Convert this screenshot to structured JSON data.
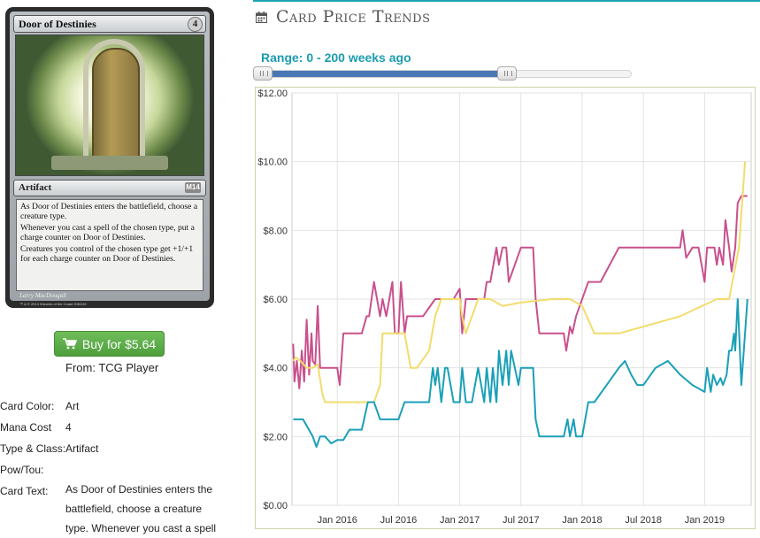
{
  "card": {
    "name": "Door of Destinies",
    "cost": "4",
    "type_line": "Artifact",
    "set_symbol": "M14",
    "rules_text": [
      "As Door of Destinies enters the battlefield, choose a creature type.",
      "Whenever you cast a spell of the chosen type, put a charge counter on Door of Destinies.",
      "Creatures you control of the chosen type get +1/+1 for each charge counter on Door of Destinies."
    ],
    "artist": "Larry MacDougall",
    "copyright": "™ & © 2013 Wizards of the Coast 208/249"
  },
  "buy": {
    "label": "Buy for $5.64",
    "from": "From: TCG Player",
    "icon": "cart-icon",
    "color": "#5cb048"
  },
  "details": {
    "rows": [
      {
        "label": "Card Color:",
        "value": "Art"
      },
      {
        "label": "Mana Cost",
        "value": "4"
      },
      {
        "label": "Type & Class:",
        "value": "Artifact"
      },
      {
        "label": "Pow/Tou:",
        "value": ""
      },
      {
        "label": "Card Text:",
        "value": ""
      }
    ],
    "card_text_lines": [
      "As Door of Destinies enters the",
      "battlefield, choose a creature",
      "type. Whenever you cast a spell"
    ]
  },
  "panel": {
    "title": "Card Price Trends",
    "icon": "calendar-icon",
    "accent": "#1ea3b5"
  },
  "range": {
    "label": "Range: 0 - 200 weeks ago",
    "min": 0,
    "max": 200,
    "start_fraction": 0.0,
    "end_fraction": 0.68
  },
  "chart_data": {
    "type": "line",
    "title": "",
    "xlabel": "",
    "ylabel": "",
    "ylim": [
      0,
      12
    ],
    "xlim": [
      2015.63,
      2019.38
    ],
    "y_ticks": [
      "$0.00",
      "$2.00",
      "$4.00",
      "$6.00",
      "$8.00",
      "$10.00",
      "$12.00"
    ],
    "y_tick_values": [
      0,
      2,
      4,
      6,
      8,
      10,
      12
    ],
    "x_ticks": [
      "Jan 2016",
      "Jul 2016",
      "Jan 2017",
      "Jul 2017",
      "Jan 2018",
      "Jul 2018",
      "Jan 2019"
    ],
    "x_tick_values": [
      2016.0,
      2016.5,
      2017.0,
      2017.5,
      2018.0,
      2018.5,
      2019.0
    ],
    "grid": true,
    "series": [
      {
        "color": "#c9508c",
        "x": [
          2015.64,
          2015.65,
          2015.67,
          2015.69,
          2015.71,
          2015.73,
          2015.75,
          2015.77,
          2015.79,
          2015.8,
          2015.82,
          2015.84,
          2015.86,
          2015.9,
          2016.0,
          2016.02,
          2016.05,
          2016.2,
          2016.24,
          2016.26,
          2016.3,
          2016.35,
          2016.37,
          2016.4,
          2016.45,
          2016.47,
          2016.5,
          2016.52,
          2016.55,
          2016.57,
          2016.6,
          2016.65,
          2016.7,
          2016.8,
          2016.9,
          2016.95,
          2017.0,
          2017.02,
          2017.05,
          2017.08,
          2017.12,
          2017.15,
          2017.2,
          2017.22,
          2017.25,
          2017.3,
          2017.32,
          2017.35,
          2017.38,
          2017.4,
          2017.45,
          2017.5,
          2017.55,
          2017.6,
          2017.62,
          2017.65,
          2017.7,
          2017.78,
          2017.85,
          2017.87,
          2017.9,
          2017.92,
          2017.95,
          2018.05,
          2018.1,
          2018.15,
          2018.3,
          2018.4,
          2018.45,
          2018.5,
          2018.55,
          2018.6,
          2018.7,
          2018.8,
          2018.82,
          2018.85,
          2018.9,
          2018.95,
          2019.0,
          2019.02,
          2019.05,
          2019.08,
          2019.1,
          2019.12,
          2019.15,
          2019.17,
          2019.2,
          2019.22,
          2019.25,
          2019.27,
          2019.3,
          2019.35
        ],
        "y": [
          4.7,
          3.6,
          4.2,
          3.4,
          4.5,
          3.6,
          5.4,
          3.8,
          5.0,
          4.2,
          4.1,
          5.8,
          4.0,
          4.0,
          4.0,
          3.5,
          5.0,
          5.0,
          5.5,
          5.5,
          6.5,
          5.5,
          6.0,
          5.5,
          6.5,
          5.0,
          5.0,
          6.5,
          5.0,
          5.5,
          5.5,
          5.5,
          5.5,
          6.0,
          6.0,
          6.0,
          6.3,
          5.0,
          6.0,
          6.0,
          6.0,
          6.0,
          6.0,
          6.5,
          6.5,
          7.5,
          7.0,
          7.5,
          7.5,
          6.5,
          7.0,
          7.5,
          7.5,
          7.5,
          6.0,
          5.0,
          5.0,
          5.0,
          5.0,
          4.5,
          5.2,
          5.0,
          5.5,
          6.5,
          6.5,
          6.5,
          7.5,
          7.5,
          7.5,
          7.5,
          7.5,
          7.5,
          7.5,
          7.5,
          8.0,
          7.2,
          7.5,
          7.5,
          6.5,
          7.5,
          7.5,
          7.5,
          7.0,
          7.5,
          7.0,
          8.3,
          7.5,
          6.8,
          7.5,
          8.8,
          9.0,
          9.0
        ]
      },
      {
        "color": "#f2dc6c",
        "x": [
          2015.64,
          2015.66,
          2015.7,
          2015.75,
          2015.8,
          2015.84,
          2015.88,
          2015.9,
          2016.0,
          2016.12,
          2016.15,
          2016.2,
          2016.3,
          2016.35,
          2016.37,
          2016.42,
          2016.5,
          2016.52,
          2016.55,
          2016.6,
          2016.65,
          2016.75,
          2016.8,
          2016.85,
          2016.9,
          2016.95,
          2017.0,
          2017.02,
          2017.05,
          2017.15,
          2017.25,
          2017.35,
          2017.5,
          2017.75,
          2017.88,
          2017.9,
          2018.0,
          2018.1,
          2018.3,
          2018.5,
          2018.8,
          2019.1,
          2019.2,
          2019.28,
          2019.33
        ],
        "y": [
          4.2,
          4.3,
          4.2,
          4.0,
          4.0,
          4.1,
          3.2,
          3.0,
          3.0,
          3.0,
          3.0,
          3.0,
          3.0,
          3.5,
          5.0,
          5.0,
          5.0,
          5.0,
          5.0,
          4.0,
          4.0,
          4.5,
          5.5,
          6.0,
          6.0,
          6.0,
          6.0,
          5.5,
          5.0,
          6.0,
          6.0,
          5.8,
          5.9,
          6.0,
          6.0,
          6.0,
          5.8,
          5.0,
          5.0,
          5.2,
          5.5,
          6.0,
          6.0,
          7.5,
          10.0
        ]
      },
      {
        "color": "#1aa0b8",
        "x": [
          2015.64,
          2015.72,
          2015.8,
          2015.83,
          2015.86,
          2015.9,
          2015.95,
          2016.0,
          2016.05,
          2016.1,
          2016.15,
          2016.2,
          2016.25,
          2016.3,
          2016.35,
          2016.4,
          2016.5,
          2016.55,
          2016.6,
          2016.7,
          2016.75,
          2016.78,
          2016.8,
          2016.82,
          2016.85,
          2016.88,
          2016.9,
          2016.95,
          2017.0,
          2017.02,
          2017.05,
          2017.1,
          2017.15,
          2017.2,
          2017.22,
          2017.25,
          2017.27,
          2017.3,
          2017.32,
          2017.35,
          2017.38,
          2017.4,
          2017.42,
          2017.45,
          2017.48,
          2017.5,
          2017.55,
          2017.6,
          2017.62,
          2017.65,
          2017.7,
          2017.75,
          2017.8,
          2017.85,
          2017.88,
          2017.9,
          2017.93,
          2017.95,
          2018.0,
          2018.05,
          2018.1,
          2018.2,
          2018.3,
          2018.35,
          2018.4,
          2018.45,
          2018.5,
          2018.6,
          2018.7,
          2018.8,
          2018.9,
          2019.0,
          2019.02,
          2019.05,
          2019.07,
          2019.1,
          2019.13,
          2019.15,
          2019.18,
          2019.2,
          2019.22,
          2019.24,
          2019.25,
          2019.27,
          2019.3,
          2019.33,
          2019.35
        ],
        "y": [
          2.5,
          2.5,
          2.0,
          1.7,
          2.0,
          2.0,
          1.8,
          1.9,
          1.9,
          2.2,
          2.2,
          2.2,
          3.0,
          3.0,
          2.5,
          2.5,
          2.5,
          3.0,
          3.0,
          3.0,
          3.0,
          4.0,
          3.5,
          4.0,
          3.0,
          4.0,
          4.0,
          3.0,
          3.0,
          4.0,
          3.0,
          3.0,
          4.0,
          3.0,
          4.0,
          3.0,
          4.0,
          3.0,
          4.5,
          3.5,
          4.5,
          3.5,
          4.5,
          4.0,
          3.5,
          4.0,
          4.0,
          4.0,
          2.5,
          2.0,
          2.0,
          2.0,
          2.0,
          2.0,
          2.5,
          2.0,
          2.5,
          2.0,
          2.0,
          3.0,
          3.0,
          3.5,
          4.0,
          4.2,
          3.8,
          3.5,
          3.5,
          4.0,
          4.2,
          3.8,
          3.5,
          3.3,
          4.0,
          3.3,
          3.8,
          3.5,
          3.7,
          3.5,
          3.8,
          4.5,
          4.5,
          5.0,
          4.5,
          6.0,
          3.5,
          5.0,
          6.0
        ]
      }
    ]
  }
}
